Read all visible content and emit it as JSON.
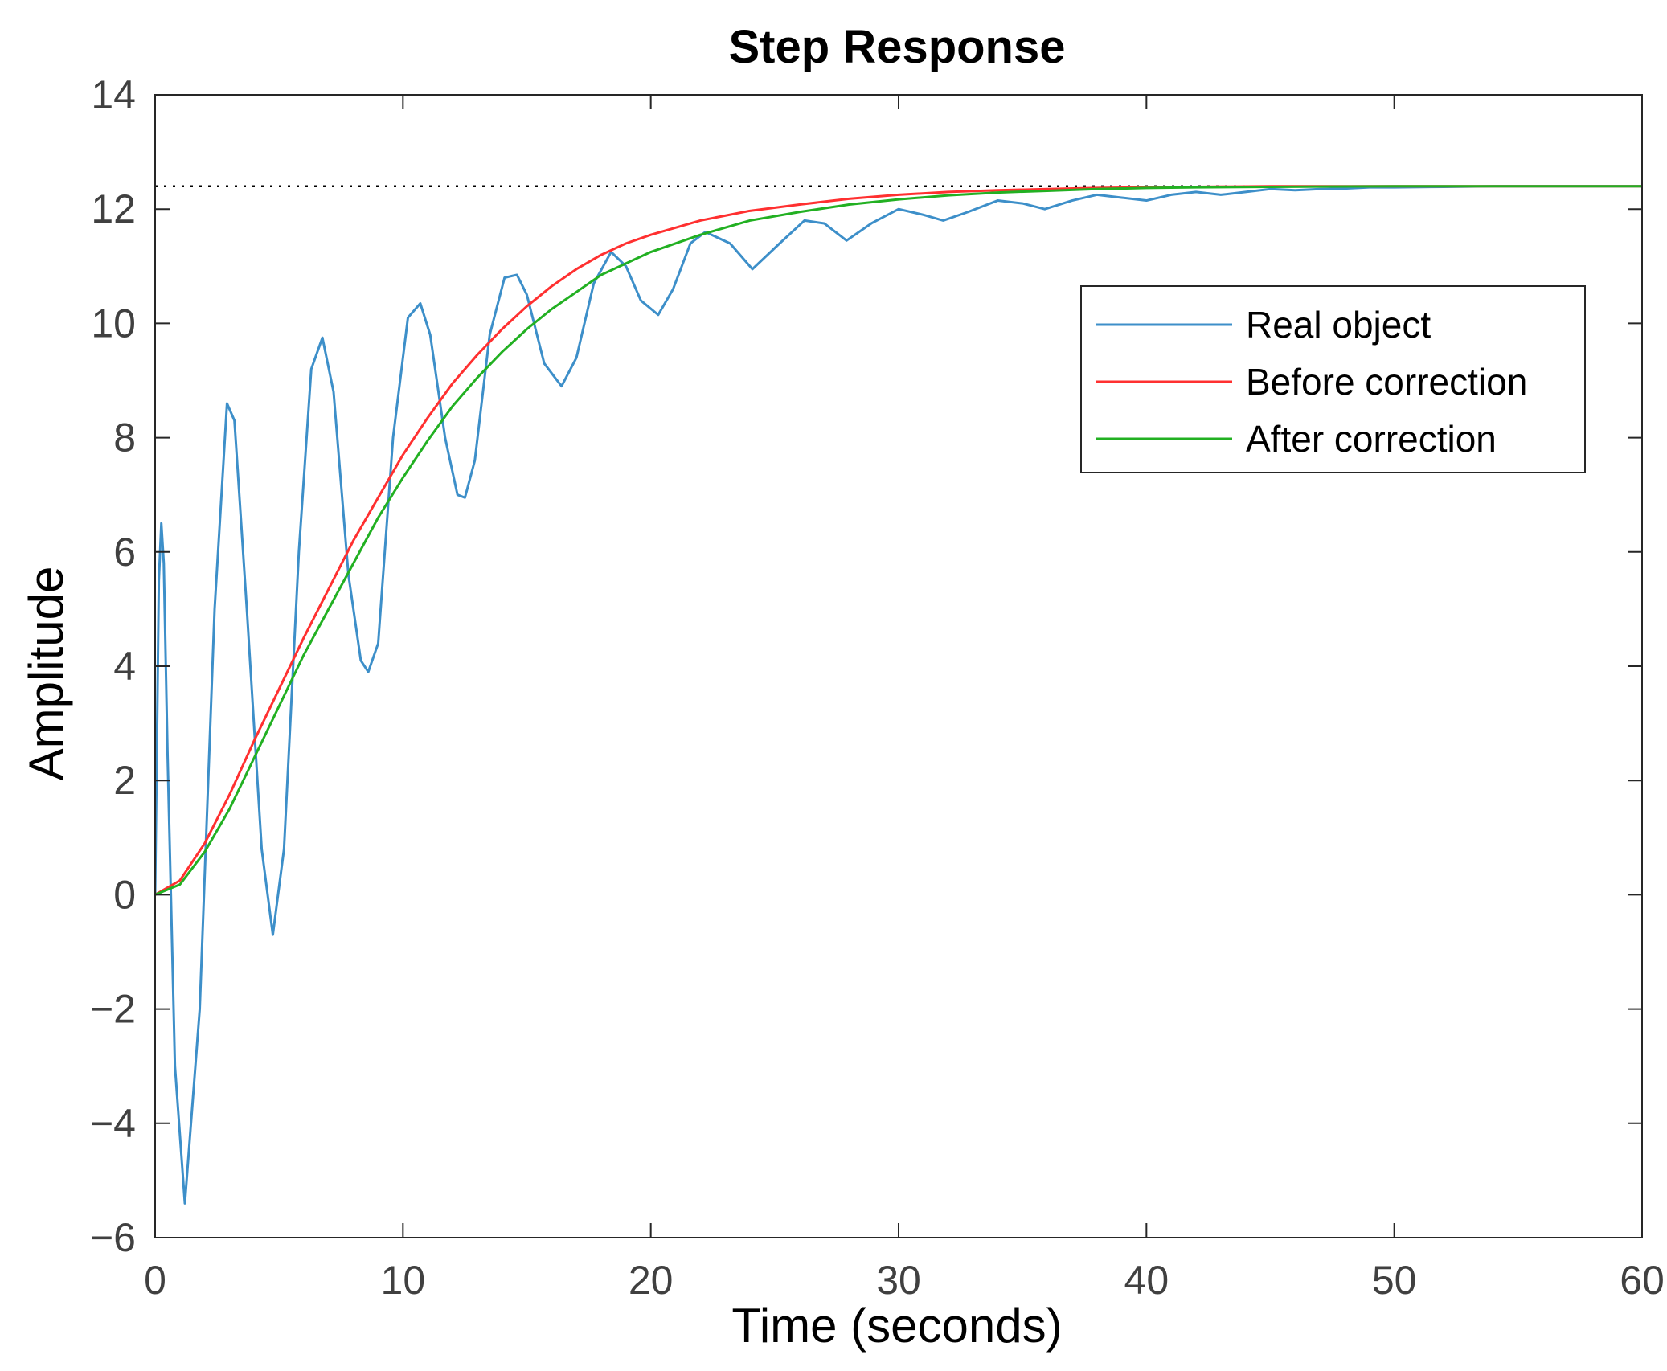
{
  "chart_data": {
    "type": "line",
    "title": "Step Response",
    "xlabel": "Time (seconds)",
    "ylabel": "Amplitude",
    "xlim": [
      0,
      60
    ],
    "ylim": [
      -6,
      14
    ],
    "x_ticks": [
      0,
      10,
      20,
      30,
      40,
      50,
      60
    ],
    "y_ticks": [
      -6,
      -4,
      -2,
      0,
      2,
      4,
      6,
      8,
      10,
      12,
      14
    ],
    "x_tick_labels": [
      "0",
      "10",
      "20",
      "30",
      "40",
      "50",
      "60"
    ],
    "y_tick_labels": [
      "−6",
      "−4",
      "−2",
      "0",
      "2",
      "4",
      "6",
      "8",
      "10",
      "12",
      "14"
    ],
    "grid": false,
    "legend_position": "top-right",
    "steady_state_value": 12.4,
    "series": [
      {
        "name": "Real object",
        "color": "#3d8fc9",
        "x": [
          0,
          0.15,
          0.25,
          0.35,
          0.5,
          0.8,
          1.2,
          1.8,
          2.4,
          2.9,
          3.2,
          3.7,
          4.3,
          4.75,
          5.2,
          5.8,
          6.3,
          6.75,
          7.2,
          7.8,
          8.3,
          8.6,
          9.0,
          9.6,
          10.2,
          10.7,
          11.1,
          11.7,
          12.2,
          12.5,
          12.9,
          13.5,
          14.1,
          14.6,
          15.0,
          15.7,
          16.4,
          17.0,
          17.7,
          18.4,
          19.0,
          19.6,
          20.3,
          20.9,
          21.6,
          22.2,
          23.2,
          24.1,
          25.2,
          26.2,
          27.0,
          27.9,
          28.9,
          30.0,
          31.0,
          31.8,
          32.8,
          34.0,
          35.0,
          35.9,
          37.0,
          38.0,
          39.0,
          40.0,
          41.0,
          42.0,
          43.0,
          44.0,
          45.0,
          46.0,
          47.0,
          48.0,
          49.0,
          50.0,
          52.0,
          54.0,
          56.0,
          58.0,
          60.0
        ],
        "y": [
          0,
          5.5,
          6.5,
          5.8,
          2.5,
          -3.0,
          -5.4,
          -2.0,
          5.0,
          8.6,
          8.3,
          5.0,
          0.8,
          -0.7,
          0.8,
          6.0,
          9.2,
          9.75,
          8.8,
          5.6,
          4.1,
          3.9,
          4.4,
          8.0,
          10.1,
          10.35,
          9.8,
          8.0,
          7.0,
          6.95,
          7.6,
          9.8,
          10.8,
          10.85,
          10.5,
          9.3,
          8.9,
          9.4,
          10.7,
          11.25,
          11.0,
          10.4,
          10.15,
          10.6,
          11.4,
          11.6,
          11.4,
          10.95,
          11.4,
          11.8,
          11.75,
          11.45,
          11.75,
          12.0,
          11.9,
          11.8,
          11.95,
          12.15,
          12.1,
          12.0,
          12.15,
          12.25,
          12.2,
          12.15,
          12.25,
          12.3,
          12.25,
          12.3,
          12.35,
          12.33,
          12.35,
          12.36,
          12.38,
          12.38,
          12.39,
          12.4,
          12.4,
          12.4,
          12.4
        ]
      },
      {
        "name": "Before correction",
        "color": "#ff3030",
        "x": [
          0,
          1,
          2,
          3,
          4,
          5,
          6,
          7,
          8,
          9,
          10,
          11,
          12,
          13,
          14,
          15,
          16,
          17,
          18,
          19,
          20,
          22,
          24,
          26,
          28,
          30,
          32,
          34,
          36,
          38,
          40,
          42,
          45,
          50,
          55,
          60
        ],
        "y": [
          0,
          0.25,
          0.9,
          1.75,
          2.7,
          3.6,
          4.5,
          5.35,
          6.2,
          6.95,
          7.7,
          8.35,
          8.95,
          9.45,
          9.9,
          10.3,
          10.65,
          10.95,
          11.2,
          11.4,
          11.55,
          11.8,
          11.97,
          12.08,
          12.18,
          12.25,
          12.3,
          12.33,
          12.35,
          12.37,
          12.38,
          12.39,
          12.4,
          12.4,
          12.4,
          12.4
        ]
      },
      {
        "name": "After correction",
        "color": "#22b022",
        "x": [
          0,
          1,
          2,
          3,
          4,
          5,
          6,
          7,
          8,
          9,
          10,
          11,
          12,
          13,
          14,
          15,
          16,
          17,
          18,
          19,
          20,
          22,
          24,
          26,
          28,
          30,
          32,
          34,
          36,
          38,
          40,
          42,
          45,
          50,
          55,
          60
        ],
        "y": [
          0,
          0.18,
          0.75,
          1.5,
          2.4,
          3.3,
          4.2,
          5.0,
          5.8,
          6.6,
          7.3,
          7.95,
          8.55,
          9.05,
          9.5,
          9.9,
          10.25,
          10.55,
          10.85,
          11.05,
          11.25,
          11.55,
          11.8,
          11.95,
          12.08,
          12.17,
          12.24,
          12.29,
          12.32,
          12.35,
          12.37,
          12.38,
          12.39,
          12.4,
          12.4,
          12.4
        ]
      }
    ]
  }
}
